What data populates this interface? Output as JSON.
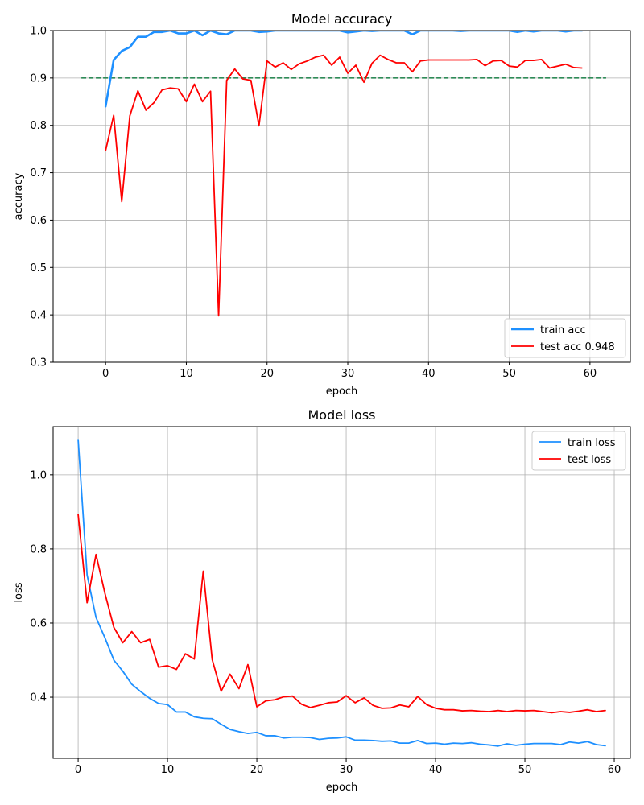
{
  "chart_data": [
    {
      "type": "line",
      "title": "Model accuracy",
      "xlabel": "epoch",
      "ylabel": "accuracy",
      "xlim": [
        -6.5,
        65
      ],
      "ylim": [
        0.3,
        1.0
      ],
      "x_ticks": [
        0,
        10,
        20,
        30,
        40,
        50,
        60
      ],
      "y_ticks": [
        0.3,
        0.4,
        0.5,
        0.6,
        0.7,
        0.8,
        0.9,
        1.0
      ],
      "y_tick_decimals": 1,
      "grid": true,
      "legend": "lower-right",
      "x": [
        0,
        1,
        2,
        3,
        4,
        5,
        6,
        7,
        8,
        9,
        10,
        11,
        12,
        13,
        14,
        15,
        16,
        17,
        18,
        19,
        20,
        21,
        22,
        23,
        24,
        25,
        26,
        27,
        28,
        29,
        30,
        31,
        32,
        33,
        34,
        35,
        36,
        37,
        38,
        39,
        40,
        41,
        42,
        43,
        44,
        45,
        46,
        47,
        48,
        49,
        50,
        51,
        52,
        53,
        54,
        55,
        56,
        57,
        58,
        59
      ],
      "series": [
        {
          "name": "train acc",
          "color": "#1e90ff",
          "width": 2.6,
          "in_legend": true,
          "values": [
            0.84,
            0.938,
            0.957,
            0.965,
            0.987,
            0.987,
            0.997,
            0.997,
            1.0,
            0.994,
            0.994,
            1.0,
            0.99,
            1.0,
            0.994,
            0.992,
            1.0,
            1.0,
            1.0,
            0.997,
            0.998,
            1.0,
            1.0,
            1.0,
            1.0,
            1.0,
            1.0,
            1.0,
            1.0,
            1.0,
            0.996,
            0.998,
            1.0,
            0.999,
            1.0,
            1.0,
            1.0,
            1.0,
            0.992,
            1.0,
            1.0,
            1.0,
            1.0,
            1.0,
            0.999,
            1.0,
            1.0,
            1.0,
            1.0,
            1.0,
            1.0,
            0.997,
            1.0,
            0.998,
            1.0,
            1.0,
            1.0,
            0.998,
            1.0,
            1.0
          ]
        },
        {
          "name": "test acc 0.948",
          "color": "#ff0000",
          "width": 1.8,
          "in_legend": true,
          "values": [
            0.747,
            0.821,
            0.639,
            0.82,
            0.873,
            0.832,
            0.848,
            0.875,
            0.879,
            0.877,
            0.85,
            0.887,
            0.85,
            0.872,
            0.398,
            0.895,
            0.919,
            0.898,
            0.895,
            0.799,
            0.936,
            0.923,
            0.932,
            0.918,
            0.93,
            0.936,
            0.944,
            0.948,
            0.927,
            0.944,
            0.91,
            0.927,
            0.891,
            0.931,
            0.948,
            0.939,
            0.932,
            0.932,
            0.913,
            0.936,
            0.938,
            0.938,
            0.938,
            0.938,
            0.938,
            0.938,
            0.939,
            0.926,
            0.936,
            0.937,
            0.925,
            0.923,
            0.937,
            0.937,
            0.939,
            0.921,
            0.925,
            0.929,
            0.922,
            0.921
          ]
        }
      ],
      "reference_line": {
        "y": 0.9,
        "x_from": -3,
        "x_to": 62,
        "color": "#2e8b57",
        "dashed": true
      }
    },
    {
      "type": "line",
      "title": "Model loss",
      "xlabel": "epoch",
      "ylabel": "loss",
      "xlim": [
        -2.8,
        61.8
      ],
      "ylim": [
        0.235,
        1.13
      ],
      "x_ticks": [
        0,
        10,
        20,
        30,
        40,
        50,
        60
      ],
      "y_ticks": [
        0.4,
        0.6,
        0.8,
        1.0
      ],
      "y_tick_decimals": 1,
      "grid": true,
      "legend": "upper-right",
      "x": [
        0,
        1,
        2,
        3,
        4,
        5,
        6,
        7,
        8,
        9,
        10,
        11,
        12,
        13,
        14,
        15,
        16,
        17,
        18,
        19,
        20,
        21,
        22,
        23,
        24,
        25,
        26,
        27,
        28,
        29,
        30,
        31,
        32,
        33,
        34,
        35,
        36,
        37,
        38,
        39,
        40,
        41,
        42,
        43,
        44,
        45,
        46,
        47,
        48,
        49,
        50,
        51,
        52,
        53,
        54,
        55,
        56,
        57,
        58,
        59
      ],
      "series": [
        {
          "name": "train loss",
          "color": "#1e90ff",
          "width": 1.8,
          "in_legend": true,
          "values": [
            1.095,
            0.73,
            0.615,
            0.56,
            0.5,
            0.47,
            0.435,
            0.415,
            0.397,
            0.383,
            0.38,
            0.36,
            0.36,
            0.347,
            0.343,
            0.342,
            0.327,
            0.313,
            0.307,
            0.302,
            0.305,
            0.296,
            0.296,
            0.29,
            0.292,
            0.292,
            0.291,
            0.286,
            0.289,
            0.29,
            0.293,
            0.284,
            0.284,
            0.283,
            0.281,
            0.282,
            0.276,
            0.276,
            0.283,
            0.275,
            0.276,
            0.273,
            0.276,
            0.275,
            0.277,
            0.273,
            0.271,
            0.268,
            0.274,
            0.27,
            0.273,
            0.275,
            0.275,
            0.275,
            0.272,
            0.279,
            0.276,
            0.28,
            0.272,
            0.269
          ]
        },
        {
          "name": "test loss",
          "color": "#ff0000",
          "width": 1.8,
          "in_legend": true,
          "values": [
            0.893,
            0.655,
            0.785,
            0.68,
            0.588,
            0.547,
            0.577,
            0.547,
            0.556,
            0.481,
            0.485,
            0.475,
            0.517,
            0.503,
            0.74,
            0.502,
            0.416,
            0.462,
            0.423,
            0.488,
            0.374,
            0.39,
            0.393,
            0.401,
            0.403,
            0.381,
            0.372,
            0.378,
            0.385,
            0.387,
            0.404,
            0.385,
            0.398,
            0.378,
            0.37,
            0.371,
            0.379,
            0.374,
            0.402,
            0.38,
            0.37,
            0.366,
            0.366,
            0.363,
            0.364,
            0.362,
            0.361,
            0.364,
            0.361,
            0.364,
            0.363,
            0.364,
            0.361,
            0.358,
            0.361,
            0.359,
            0.362,
            0.366,
            0.361,
            0.364
          ]
        }
      ]
    }
  ]
}
